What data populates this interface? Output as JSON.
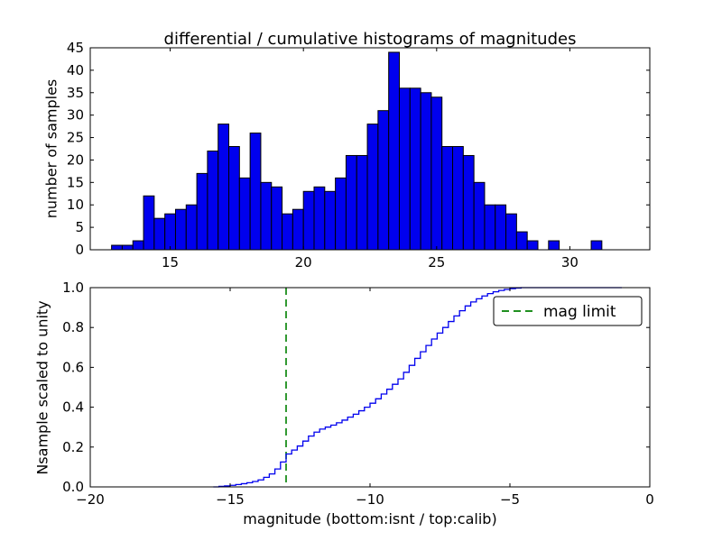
{
  "figure": {
    "background": "#ffffff"
  },
  "chart_data": [
    {
      "type": "bar",
      "subplot": "top",
      "title": "differential / cumulative histograms of magnitudes",
      "ylabel": "number of samples",
      "xlim": [
        12,
        33
      ],
      "ylim": [
        0,
        45
      ],
      "xticks": [
        15,
        20,
        25,
        30
      ],
      "xtick_labels": [
        "15",
        "20",
        "25",
        "30"
      ],
      "yticks": [
        0,
        5,
        10,
        15,
        20,
        25,
        30,
        35,
        40,
        45
      ],
      "ytick_labels": [
        "0",
        "5",
        "10",
        "15",
        "20",
        "25",
        "30",
        "35",
        "40",
        "45"
      ],
      "bin_width": 0.4,
      "bin_left_edges": [
        12.8,
        13.2,
        13.6,
        14.0,
        14.4,
        14.8,
        15.2,
        15.6,
        16.0,
        16.4,
        16.8,
        17.2,
        17.6,
        18.0,
        18.4,
        18.8,
        19.2,
        19.6,
        20.0,
        20.4,
        20.8,
        21.2,
        21.6,
        22.0,
        22.4,
        22.8,
        23.2,
        23.6,
        24.0,
        24.4,
        24.8,
        25.2,
        25.6,
        26.0,
        26.4,
        26.8,
        27.2,
        27.6,
        28.0,
        28.4,
        28.8,
        29.2,
        29.6,
        30.0,
        30.4,
        30.8
      ],
      "values": [
        1,
        1,
        2,
        12,
        7,
        8,
        9,
        10,
        17,
        22,
        28,
        23,
        16,
        26,
        15,
        14,
        8,
        9,
        13,
        14,
        13,
        16,
        21,
        21,
        28,
        31,
        44,
        36,
        36,
        35,
        34,
        23,
        23,
        21,
        15,
        10,
        10,
        8,
        4,
        2,
        0,
        2,
        0,
        0,
        0,
        2
      ],
      "bar_color": "#0000ee",
      "bar_edge_color": "#000000",
      "grid": false
    },
    {
      "type": "line",
      "subplot": "bottom",
      "step": true,
      "ylabel": "Nsample scaled to unity",
      "xlabel": "magnitude (bottom:isnt / top:calib)",
      "xlim": [
        -20,
        0
      ],
      "ylim": [
        0.0,
        1.0
      ],
      "xticks": [
        -20,
        -15,
        -10,
        -5,
        0
      ],
      "xtick_labels": [
        "−20",
        "−15",
        "−10",
        "−5",
        "0"
      ],
      "yticks": [
        0.0,
        0.2,
        0.4,
        0.6,
        0.8,
        1.0
      ],
      "ytick_labels": [
        "0.0",
        "0.2",
        "0.4",
        "0.6",
        "0.8",
        "1.0"
      ],
      "line_color": "#0000ee",
      "x": [
        -15.6,
        -15.4,
        -15.2,
        -15.0,
        -14.8,
        -14.6,
        -14.4,
        -14.2,
        -14.0,
        -13.8,
        -13.6,
        -13.4,
        -13.2,
        -13.0,
        -12.8,
        -12.6,
        -12.4,
        -12.2,
        -12.0,
        -11.8,
        -11.6,
        -11.4,
        -11.2,
        -11.0,
        -10.8,
        -10.6,
        -10.4,
        -10.2,
        -10.0,
        -9.8,
        -9.6,
        -9.4,
        -9.2,
        -9.0,
        -8.8,
        -8.6,
        -8.4,
        -8.2,
        -8.0,
        -7.8,
        -7.6,
        -7.4,
        -7.2,
        -7.0,
        -6.8,
        -6.6,
        -6.4,
        -6.2,
        -6.0,
        -5.8,
        -5.6,
        -5.4,
        -5.2,
        -5.0,
        -4.8,
        -4.6,
        -1.0
      ],
      "y": [
        0.0,
        0.003,
        0.005,
        0.008,
        0.012,
        0.016,
        0.021,
        0.027,
        0.035,
        0.048,
        0.065,
        0.09,
        0.125,
        0.165,
        0.185,
        0.205,
        0.23,
        0.255,
        0.275,
        0.29,
        0.3,
        0.31,
        0.322,
        0.335,
        0.35,
        0.365,
        0.382,
        0.4,
        0.42,
        0.442,
        0.466,
        0.49,
        0.515,
        0.542,
        0.575,
        0.61,
        0.645,
        0.678,
        0.71,
        0.742,
        0.772,
        0.8,
        0.83,
        0.858,
        0.884,
        0.908,
        0.928,
        0.944,
        0.958,
        0.97,
        0.979,
        0.986,
        0.991,
        0.995,
        0.998,
        1.0,
        1.0
      ],
      "vline": {
        "x": -13,
        "color": "#008000",
        "linestyle": "dashed",
        "label": "mag limit"
      },
      "legend": {
        "position": "upper right",
        "entries": [
          {
            "label": "mag limit",
            "color": "#008000",
            "linestyle": "dashed"
          }
        ]
      },
      "grid": false
    }
  ]
}
